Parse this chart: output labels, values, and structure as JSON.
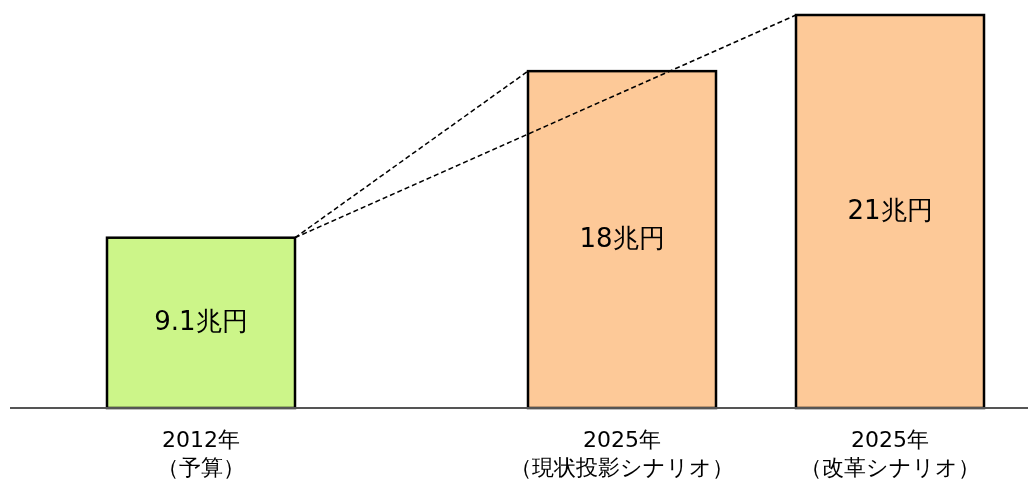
{
  "chart_data": {
    "type": "bar",
    "categories": [
      "2012年（予算）",
      "2025年（現状投影シナリオ）",
      "2025年（改革シナリオ）"
    ],
    "values": [
      9.1,
      18,
      21
    ],
    "colors": [
      "#ccf589",
      "#fdc998",
      "#fdc998"
    ],
    "value_labels": [
      "9.1兆円",
      "18兆円",
      "21兆円"
    ]
  }
}
